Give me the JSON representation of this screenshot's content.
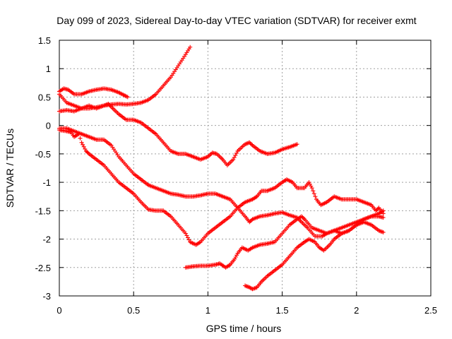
{
  "chart_data": {
    "type": "scatter",
    "title": "Day 099 of 2023, Sidereal Day-to-day VTEC variation (SDTVAR) for receiver exmt",
    "xlabel": "GPS time / hours",
    "ylabel": "SDTVAR / TECUs",
    "xlim": [
      0,
      2.5
    ],
    "ylim": [
      -3,
      1.5
    ],
    "xticks": [
      "0",
      "0.5",
      "1",
      "1.5",
      "2",
      "2.5"
    ],
    "yticks": [
      "-3",
      "-2.5",
      "-2",
      "-1.5",
      "-1",
      "-0.5",
      "0",
      "0.5",
      "1",
      "1.5"
    ],
    "grid": true,
    "marker": "+",
    "color": "#ff0000",
    "series": [
      {
        "points": [
          [
            0,
            0.6
          ],
          [
            0.03,
            0.65
          ],
          [
            0.06,
            0.63
          ],
          [
            0.1,
            0.55
          ],
          [
            0.15,
            0.55
          ],
          [
            0.2,
            0.6
          ],
          [
            0.25,
            0.63
          ],
          [
            0.3,
            0.65
          ],
          [
            0.35,
            0.63
          ],
          [
            0.4,
            0.58
          ],
          [
            0.46,
            0.5
          ]
        ]
      },
      {
        "points": [
          [
            0,
            0.55
          ],
          [
            0.05,
            0.4
          ],
          [
            0.1,
            0.35
          ],
          [
            0.15,
            0.3
          ],
          [
            0.2,
            0.35
          ],
          [
            0.25,
            0.3
          ],
          [
            0.3,
            0.35
          ],
          [
            0.35,
            0.37
          ],
          [
            0.4,
            0.38
          ],
          [
            0.45,
            0.37
          ],
          [
            0.5,
            0.38
          ],
          [
            0.55,
            0.4
          ],
          [
            0.6,
            0.45
          ],
          [
            0.65,
            0.55
          ],
          [
            0.7,
            0.7
          ],
          [
            0.75,
            0.85
          ],
          [
            0.8,
            1.05
          ],
          [
            0.85,
            1.25
          ],
          [
            0.88,
            1.38
          ]
        ]
      },
      {
        "points": [
          [
            0,
            0.25
          ],
          [
            0.05,
            0.27
          ],
          [
            0.1,
            0.25
          ],
          [
            0.15,
            0.3
          ],
          [
            0.2,
            0.3
          ],
          [
            0.25,
            0.32
          ],
          [
            0.3,
            0.35
          ],
          [
            0.33,
            0.38
          ],
          [
            0.36,
            0.3
          ],
          [
            0.4,
            0.2
          ],
          [
            0.45,
            0.1
          ],
          [
            0.5,
            0.1
          ],
          [
            0.55,
            0.05
          ],
          [
            0.6,
            -0.05
          ],
          [
            0.65,
            -0.15
          ],
          [
            0.7,
            -0.3
          ],
          [
            0.75,
            -0.45
          ],
          [
            0.8,
            -0.5
          ],
          [
            0.85,
            -0.5
          ],
          [
            0.9,
            -0.55
          ],
          [
            0.95,
            -0.6
          ],
          [
            1.0,
            -0.55
          ],
          [
            1.03,
            -0.48
          ],
          [
            1.06,
            -0.5
          ],
          [
            1.1,
            -0.6
          ],
          [
            1.13,
            -0.7
          ],
          [
            1.17,
            -0.6
          ],
          [
            1.2,
            -0.45
          ],
          [
            1.25,
            -0.33
          ],
          [
            1.28,
            -0.3
          ],
          [
            1.3,
            -0.35
          ],
          [
            1.35,
            -0.45
          ],
          [
            1.4,
            -0.5
          ],
          [
            1.45,
            -0.48
          ],
          [
            1.5,
            -0.42
          ],
          [
            1.55,
            -0.38
          ],
          [
            1.6,
            -0.33
          ]
        ]
      },
      {
        "points": [
          [
            0,
            -0.08
          ],
          [
            0.05,
            -0.1
          ],
          [
            0.08,
            -0.12
          ],
          [
            0.1,
            -0.2
          ],
          [
            0.13,
            -0.15
          ],
          [
            0.15,
            -0.3
          ],
          [
            0.18,
            -0.45
          ],
          [
            0.2,
            -0.5
          ],
          [
            0.25,
            -0.6
          ],
          [
            0.3,
            -0.7
          ],
          [
            0.35,
            -0.85
          ],
          [
            0.4,
            -1.0
          ],
          [
            0.45,
            -1.1
          ],
          [
            0.5,
            -1.2
          ],
          [
            0.55,
            -1.35
          ],
          [
            0.6,
            -1.48
          ],
          [
            0.65,
            -1.5
          ],
          [
            0.7,
            -1.5
          ],
          [
            0.75,
            -1.6
          ],
          [
            0.8,
            -1.75
          ],
          [
            0.85,
            -1.9
          ],
          [
            0.88,
            -2.05
          ],
          [
            0.92,
            -2.1
          ],
          [
            0.95,
            -2.05
          ],
          [
            1.0,
            -1.9
          ],
          [
            1.05,
            -1.8
          ],
          [
            1.1,
            -1.7
          ],
          [
            1.15,
            -1.6
          ],
          [
            1.2,
            -1.45
          ],
          [
            1.25,
            -1.35
          ],
          [
            1.3,
            -1.3
          ],
          [
            1.33,
            -1.25
          ],
          [
            1.36,
            -1.15
          ],
          [
            1.4,
            -1.15
          ],
          [
            1.45,
            -1.1
          ],
          [
            1.5,
            -1.0
          ],
          [
            1.53,
            -0.95
          ],
          [
            1.57,
            -1.0
          ],
          [
            1.6,
            -1.1
          ],
          [
            1.65,
            -1.1
          ],
          [
            1.68,
            -1.0
          ],
          [
            1.7,
            -1.1
          ],
          [
            1.73,
            -1.3
          ],
          [
            1.76,
            -1.4
          ],
          [
            1.8,
            -1.35
          ],
          [
            1.85,
            -1.25
          ],
          [
            1.9,
            -1.3
          ],
          [
            1.95,
            -1.3
          ],
          [
            2.0,
            -1.3
          ],
          [
            2.05,
            -1.35
          ],
          [
            2.1,
            -1.4
          ],
          [
            2.13,
            -1.5
          ],
          [
            2.15,
            -1.45
          ],
          [
            2.18,
            -1.55
          ]
        ]
      },
      {
        "points": [
          [
            0,
            -0.05
          ],
          [
            0.05,
            -0.05
          ],
          [
            0.1,
            -0.1
          ],
          [
            0.15,
            -0.15
          ],
          [
            0.2,
            -0.2
          ],
          [
            0.25,
            -0.25
          ],
          [
            0.3,
            -0.25
          ],
          [
            0.35,
            -0.35
          ],
          [
            0.4,
            -0.55
          ],
          [
            0.45,
            -0.7
          ],
          [
            0.5,
            -0.85
          ],
          [
            0.55,
            -0.95
          ],
          [
            0.6,
            -1.05
          ],
          [
            0.65,
            -1.1
          ],
          [
            0.7,
            -1.15
          ],
          [
            0.75,
            -1.2
          ],
          [
            0.8,
            -1.22
          ],
          [
            0.85,
            -1.25
          ],
          [
            0.9,
            -1.25
          ],
          [
            0.95,
            -1.23
          ],
          [
            1.0,
            -1.2
          ],
          [
            1.05,
            -1.2
          ],
          [
            1.1,
            -1.25
          ],
          [
            1.15,
            -1.3
          ],
          [
            1.2,
            -1.45
          ],
          [
            1.25,
            -1.6
          ],
          [
            1.28,
            -1.7
          ],
          [
            1.3,
            -1.65
          ],
          [
            1.35,
            -1.6
          ],
          [
            1.4,
            -1.58
          ],
          [
            1.45,
            -1.55
          ],
          [
            1.5,
            -1.53
          ],
          [
            1.55,
            -1.58
          ],
          [
            1.6,
            -1.62
          ],
          [
            1.63,
            -1.7
          ],
          [
            1.67,
            -1.8
          ],
          [
            1.72,
            -1.95
          ],
          [
            1.77,
            -1.95
          ],
          [
            1.8,
            -1.9
          ],
          [
            1.85,
            -1.85
          ],
          [
            1.9,
            -1.8
          ],
          [
            1.95,
            -1.75
          ],
          [
            2.0,
            -1.7
          ],
          [
            2.05,
            -1.65
          ],
          [
            2.1,
            -1.6
          ],
          [
            2.15,
            -1.6
          ],
          [
            2.18,
            -1.62
          ]
        ]
      },
      {
        "points": [
          [
            0.85,
            -2.5
          ],
          [
            0.9,
            -2.48
          ],
          [
            0.95,
            -2.47
          ],
          [
            1.0,
            -2.47
          ],
          [
            1.05,
            -2.45
          ],
          [
            1.08,
            -2.43
          ],
          [
            1.12,
            -2.5
          ],
          [
            1.15,
            -2.45
          ],
          [
            1.18,
            -2.35
          ],
          [
            1.2,
            -2.25
          ],
          [
            1.23,
            -2.15
          ],
          [
            1.27,
            -2.2
          ],
          [
            1.3,
            -2.15
          ],
          [
            1.35,
            -2.1
          ],
          [
            1.4,
            -2.08
          ],
          [
            1.45,
            -2.05
          ],
          [
            1.5,
            -1.9
          ],
          [
            1.55,
            -1.75
          ],
          [
            1.6,
            -1.65
          ],
          [
            1.63,
            -1.6
          ],
          [
            1.65,
            -1.65
          ],
          [
            1.7,
            -1.8
          ],
          [
            1.75,
            -1.85
          ],
          [
            1.8,
            -1.9
          ],
          [
            1.85,
            -1.85
          ],
          [
            1.9,
            -1.9
          ],
          [
            1.95,
            -1.85
          ],
          [
            2.0,
            -1.75
          ],
          [
            2.05,
            -1.65
          ],
          [
            2.1,
            -1.6
          ],
          [
            2.15,
            -1.55
          ],
          [
            2.18,
            -1.5
          ]
        ]
      },
      {
        "points": [
          [
            1.25,
            -2.82
          ],
          [
            1.28,
            -2.85
          ],
          [
            1.3,
            -2.88
          ],
          [
            1.33,
            -2.85
          ],
          [
            1.36,
            -2.75
          ],
          [
            1.4,
            -2.65
          ],
          [
            1.45,
            -2.55
          ],
          [
            1.5,
            -2.45
          ],
          [
            1.55,
            -2.3
          ],
          [
            1.6,
            -2.15
          ],
          [
            1.65,
            -2.05
          ],
          [
            1.68,
            -2.0
          ],
          [
            1.72,
            -2.05
          ],
          [
            1.75,
            -2.15
          ],
          [
            1.78,
            -2.2
          ],
          [
            1.82,
            -2.1
          ],
          [
            1.85,
            -2.0
          ],
          [
            1.9,
            -1.9
          ],
          [
            1.95,
            -1.85
          ],
          [
            2.0,
            -1.75
          ],
          [
            2.05,
            -1.7
          ],
          [
            2.1,
            -1.75
          ],
          [
            2.15,
            -1.85
          ],
          [
            2.18,
            -1.88
          ]
        ]
      }
    ]
  }
}
